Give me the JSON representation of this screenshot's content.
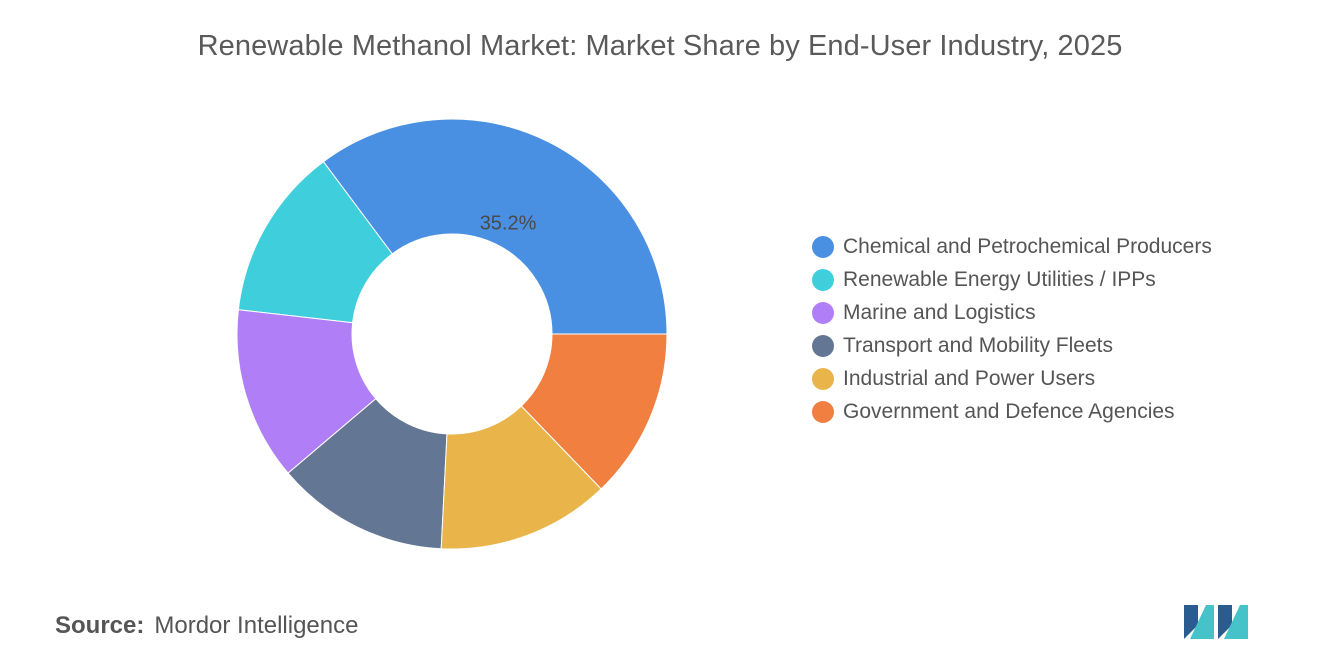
{
  "chart_data": {
    "type": "pie",
    "variant": "donut",
    "title": "Renewable Methanol Market: Market Share by End-User Industry, 2025",
    "categories": [
      "Chemical and Petrochemical Producers",
      "Renewable Energy Utilities / IPPs",
      "Marine and Logistics",
      "Transport and Mobility Fleets",
      "Industrial and Power Users",
      "Government and Defence Agencies"
    ],
    "values": [
      35.2,
      13.0,
      13.0,
      13.0,
      13.0,
      12.8
    ],
    "data_labels": [
      "35.2%",
      "",
      "",
      "",
      "",
      ""
    ],
    "colors": [
      "#4a90e2",
      "#3fcfdc",
      "#b07ff7",
      "#637795",
      "#e9b54a",
      "#f07f40"
    ],
    "start_angle_deg": 0,
    "direction": "counterclockwise",
    "legend_position": "right"
  },
  "source": {
    "label": "Source:",
    "value": "Mordor Intelligence"
  },
  "logo": {
    "icon": "mordor-intelligence-logo-icon",
    "colors": [
      "#2b5c8f",
      "#45c3c9"
    ]
  }
}
